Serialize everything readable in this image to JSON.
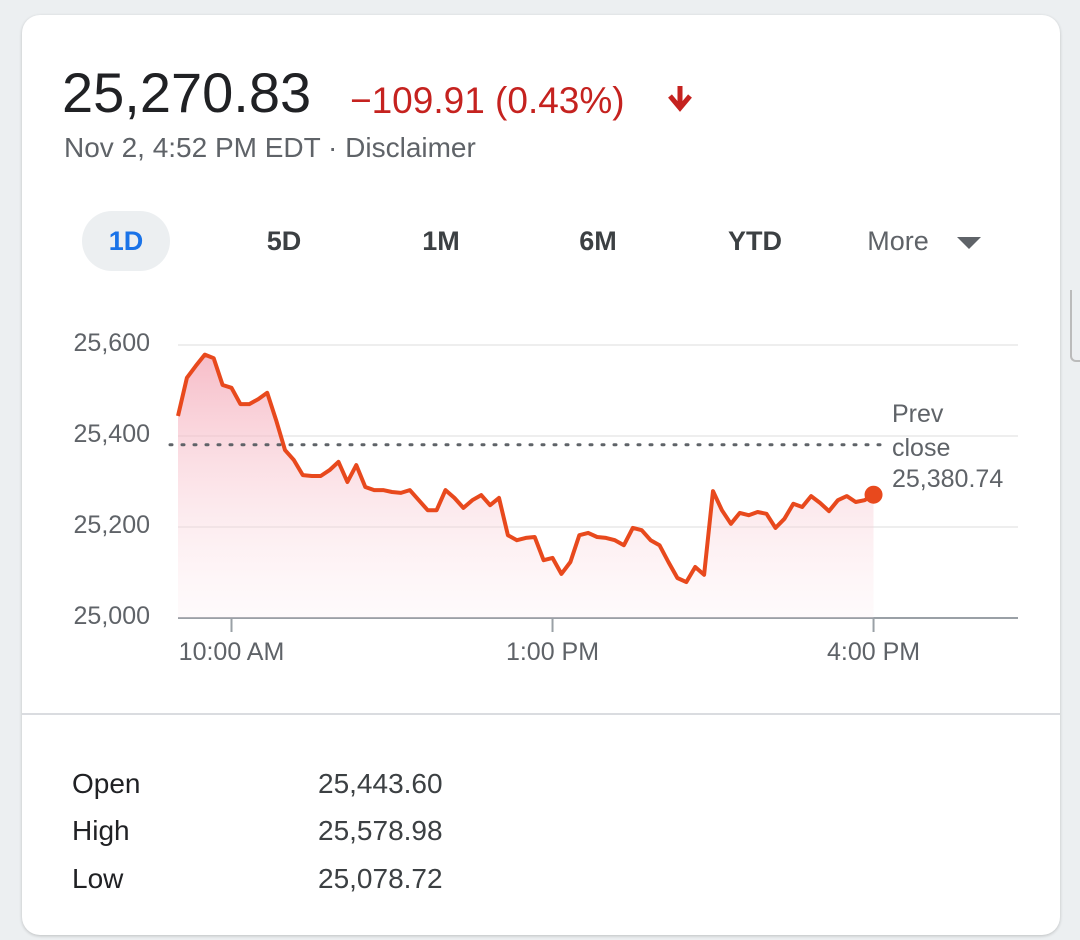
{
  "header": {
    "price": "25,270.83",
    "change": "−109.91 (0.43%)",
    "timestamp": "Nov 2, 4:52 PM EDT",
    "separator": "·",
    "disclaimer": "Disclaimer"
  },
  "ranges": [
    "1D",
    "5D",
    "1M",
    "6M",
    "YTD",
    "More"
  ],
  "chart_data": {
    "type": "line",
    "color": "#e8491d",
    "x": [
      570,
      575,
      580,
      585,
      590,
      595,
      600,
      605,
      610,
      615,
      620,
      625,
      630,
      635,
      640,
      645,
      650,
      655,
      660,
      665,
      670,
      675,
      680,
      685,
      690,
      695,
      700,
      705,
      710,
      715,
      720,
      725,
      730,
      735,
      740,
      745,
      750,
      755,
      760,
      765,
      770,
      775,
      780,
      785,
      790,
      795,
      800,
      805,
      810,
      815,
      820,
      825,
      830,
      835,
      840,
      845,
      850,
      855,
      860,
      865,
      870,
      875,
      880,
      885,
      890,
      895,
      900,
      905,
      910,
      915,
      920,
      925,
      930,
      935,
      940,
      945,
      950,
      955,
      960
    ],
    "values": [
      25444,
      25528,
      25554,
      25579,
      25571,
      25512,
      25506,
      25470,
      25470,
      25481,
      25495,
      25435,
      25369,
      25347,
      25314,
      25312,
      25312,
      25325,
      25343,
      25299,
      25336,
      25288,
      25281,
      25281,
      25277,
      25275,
      25281,
      25259,
      25237,
      25237,
      25281,
      25264,
      25242,
      25259,
      25270,
      25248,
      25264,
      25182,
      25171,
      25176,
      25178,
      25127,
      25132,
      25097,
      25123,
      25182,
      25187,
      25178,
      25176,
      25171,
      25160,
      25198,
      25193,
      25171,
      25160,
      25123,
      25088,
      25079,
      25112,
      25095,
      25279,
      25237,
      25207,
      25231,
      25226,
      25233,
      25229,
      25198,
      25218,
      25251,
      25244,
      25268,
      25253,
      25235,
      25259,
      25268,
      25255,
      25259,
      25271
    ],
    "xlim": [
      570,
      1041
    ],
    "ylim": [
      25000,
      25600
    ],
    "xticks": [
      {
        "value": 600,
        "label": "10:00 AM"
      },
      {
        "value": 780,
        "label": "1:00 PM"
      },
      {
        "value": 960,
        "label": "4:00 PM"
      }
    ],
    "yticks": [
      {
        "value": 25000,
        "label": "25,000"
      },
      {
        "value": 25200,
        "label": "25,200"
      },
      {
        "value": 25400,
        "label": "25,400"
      },
      {
        "value": 25600,
        "label": "25,600"
      }
    ],
    "grid": true,
    "prev_close": {
      "value": 25380.74,
      "label": "Prev close",
      "value_label": "25,380.74"
    }
  },
  "stats": [
    {
      "label": "Open",
      "value": "25,443.60"
    },
    {
      "label": "High",
      "value": "25,578.98"
    },
    {
      "label": "Low",
      "value": "25,078.72"
    }
  ]
}
